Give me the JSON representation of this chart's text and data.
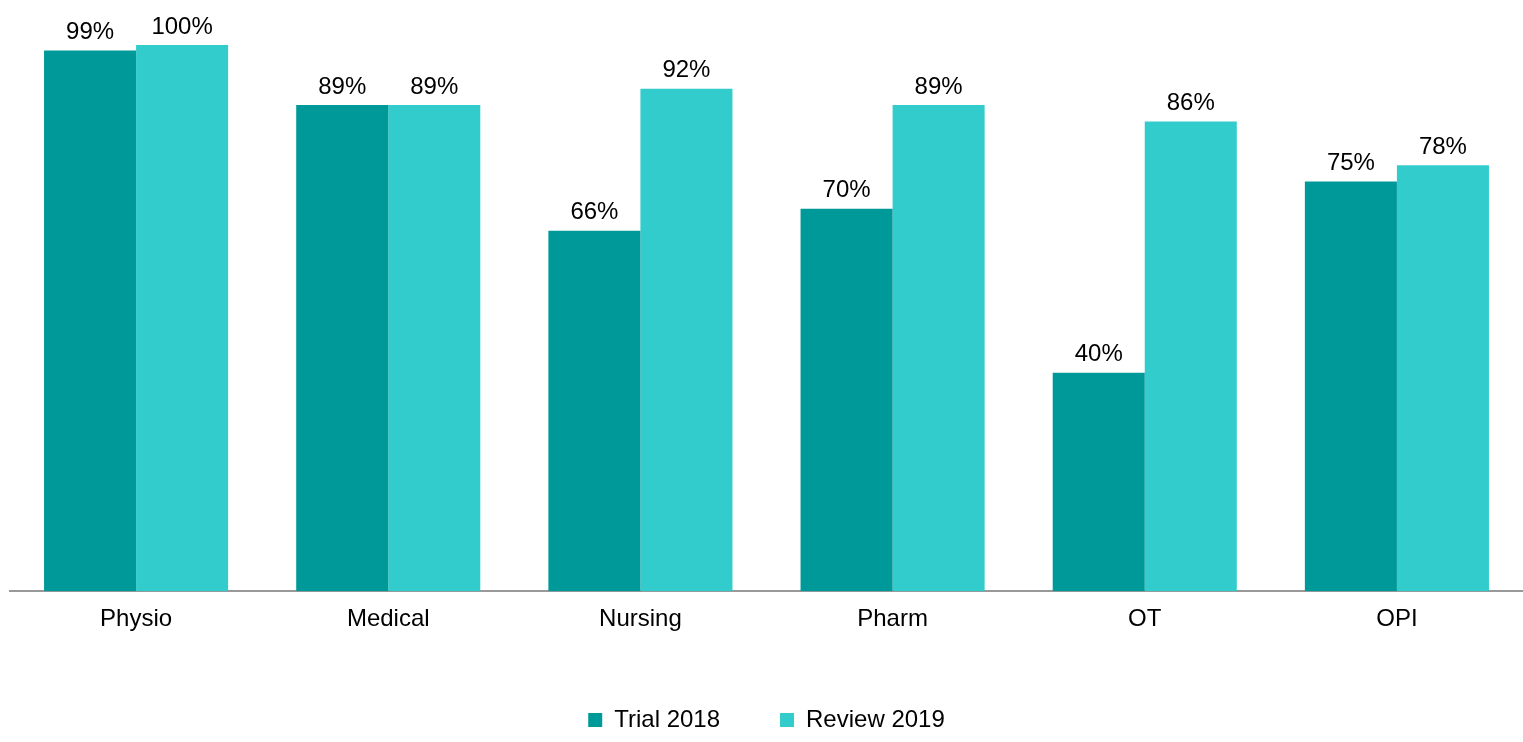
{
  "chart_data": {
    "type": "bar",
    "categories": [
      "Physio",
      "Medical",
      "Nursing",
      "Pharm",
      "OT",
      "OPI"
    ],
    "series": [
      {
        "name": "Trial 2018",
        "color": "#009999",
        "values": [
          99,
          89,
          66,
          70,
          40,
          75
        ],
        "value_labels": [
          "99%",
          "89%",
          "66%",
          "70%",
          "40%",
          "75%"
        ]
      },
      {
        "name": "Review 2019",
        "color": "#33cccc",
        "values": [
          100,
          89,
          92,
          89,
          86,
          78
        ],
        "value_labels": [
          "100%",
          "89%",
          "92%",
          "89%",
          "86%",
          "78%"
        ]
      }
    ],
    "legend": "bottom",
    "grid": false
  }
}
